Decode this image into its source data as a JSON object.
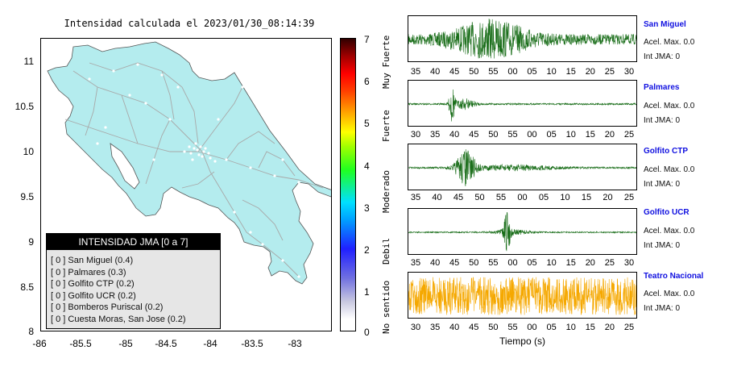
{
  "map": {
    "title": "Intensidad calculada el 2023/01/30_08:14:39",
    "y_ticks": [
      "11",
      "10.5",
      "10",
      "9.5",
      "9",
      "8.5",
      "8"
    ],
    "x_ticks": [
      "-86",
      "-85.5",
      "-85",
      "-84.5",
      "-84",
      "-83.5",
      "-83"
    ],
    "land_color": "#b4ecee",
    "road_color": "#a8a8a8"
  },
  "legend": {
    "title": "INTENSIDAD JMA [0 a 7]",
    "items": [
      "[ 0 ]  San Miguel (0.4)",
      "[ 0 ]  Palmares (0.3)",
      "[ 0 ]  Golfito CTP (0.2)",
      "[ 0 ]  Golfito UCR (0.2)",
      "[ 0 ]  Bomberos Puriscal (0.2)",
      "[ 0 ]  Cuesta Moras, San Jose (0.2)"
    ]
  },
  "scale": {
    "labels": [
      "7",
      "6",
      "5",
      "4",
      "3",
      "2",
      "1",
      "0"
    ],
    "words": [
      "Muy Fuerte",
      "Fuerte",
      "Moderado",
      "Debil",
      "No sentido"
    ]
  },
  "traces": [
    {
      "name": "San Miguel",
      "acel": "Acel. Max. 0.0",
      "int": "Int JMA: 0",
      "ticks": [
        "35",
        "40",
        "45",
        "50",
        "55",
        "00",
        "05",
        "10",
        "15",
        "20",
        "25",
        "30"
      ],
      "color": "#1a6e1a"
    },
    {
      "name": "Palmares",
      "acel": "Acel. Max. 0.0",
      "int": "Int JMA: 0",
      "ticks": [
        "30",
        "35",
        "40",
        "45",
        "50",
        "55",
        "00",
        "05",
        "10",
        "15",
        "20",
        "25"
      ],
      "color": "#1a6e1a"
    },
    {
      "name": "Golfito CTP",
      "acel": "Acel. Max. 0.0",
      "int": "Int JMA: 0",
      "ticks": [
        "35",
        "40",
        "45",
        "50",
        "55",
        "00",
        "05",
        "10",
        "15",
        "20",
        "25"
      ],
      "color": "#1a6e1a"
    },
    {
      "name": "Golfito UCR",
      "acel": "Acel. Max. 0.0",
      "int": "Int JMA: 0",
      "ticks": [
        "35",
        "40",
        "45",
        "50",
        "55",
        "00",
        "05",
        "10",
        "15",
        "20",
        "25",
        "30"
      ],
      "color": "#1a6e1a"
    },
    {
      "name": "Teatro Nacional",
      "acel": "Acel. Max. 0.0",
      "int": "Int JMA: 0",
      "ticks": [
        "30",
        "35",
        "40",
        "45",
        "50",
        "55",
        "00",
        "05",
        "10",
        "15",
        "20",
        "25"
      ],
      "color": "#f5a800"
    }
  ],
  "x_axis_title": "Tiempo (s)"
}
